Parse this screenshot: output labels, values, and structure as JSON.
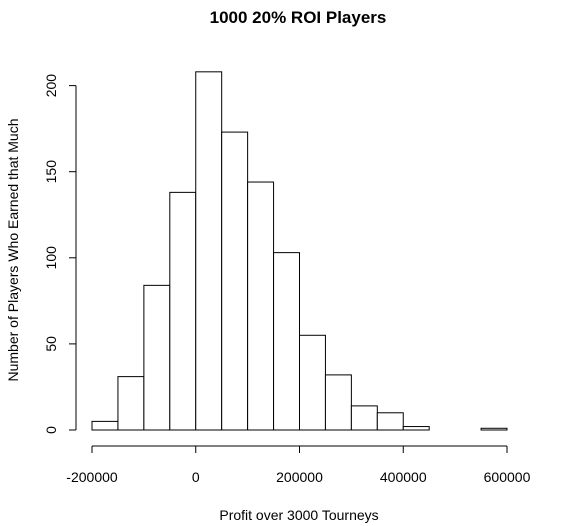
{
  "chart_data": {
    "type": "bar",
    "title": "1000 20% ROI Players",
    "xlabel": "Profit over 3000 Tourneys",
    "ylabel": "Number of Players Who Earned that Much",
    "bin_edges": [
      -200000,
      -150000,
      -100000,
      -50000,
      0,
      50000,
      100000,
      150000,
      200000,
      250000,
      300000,
      350000,
      400000,
      450000,
      500000,
      550000,
      600000
    ],
    "values": [
      5,
      31,
      84,
      138,
      208,
      173,
      144,
      103,
      55,
      32,
      14,
      10,
      2,
      0,
      0,
      1
    ],
    "xlim": [
      -200000,
      600000
    ],
    "ylim": [
      0,
      210
    ],
    "x_ticks": [
      -200000,
      0,
      200000,
      400000,
      600000
    ],
    "x_tick_labels": [
      "-200000",
      "0",
      "200000",
      "400000",
      "600000"
    ],
    "y_ticks": [
      0,
      50,
      100,
      150,
      200
    ],
    "y_tick_labels": [
      "0",
      "50",
      "100",
      "150",
      "200"
    ],
    "grid": false,
    "legend": "none"
  }
}
